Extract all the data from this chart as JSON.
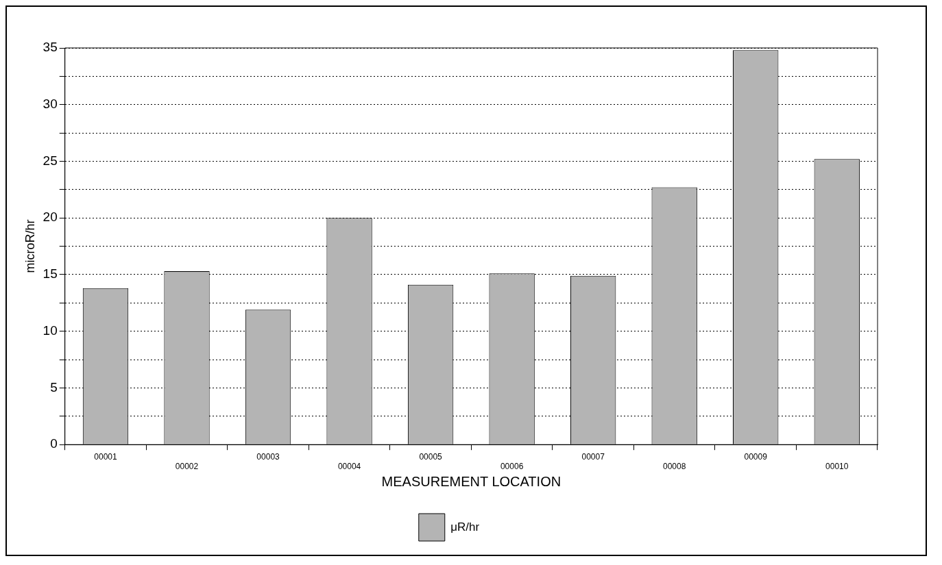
{
  "chart_data": {
    "type": "bar",
    "xlabel": "MEASUREMENT LOCATION",
    "ylabel": "microR/hr",
    "categories": [
      "00001",
      "00002",
      "00003",
      "00004",
      "00005",
      "00006",
      "00007",
      "00008",
      "00009",
      "00010"
    ],
    "series": [
      {
        "name": "μR/hr",
        "color": "#b4b4b4",
        "values": [
          13.8,
          15.3,
          11.9,
          20.0,
          14.1,
          15.1,
          14.9,
          22.7,
          34.8,
          25.2
        ]
      }
    ],
    "ylim": [
      0,
      35
    ],
    "yticks": [
      0,
      {
        "value": 2.5,
        "label": null
      },
      5,
      {
        "value": 7.5,
        "label": null
      },
      10,
      {
        "value": 12.5,
        "label": null
      },
      15,
      {
        "value": 17.5,
        "label": null
      },
      20,
      {
        "value": 22.5,
        "label": null
      },
      25,
      {
        "value": 27.5,
        "label": null
      },
      30,
      {
        "value": 32.5,
        "label": null
      },
      35
    ],
    "grid": "y",
    "legend": "bottom"
  }
}
